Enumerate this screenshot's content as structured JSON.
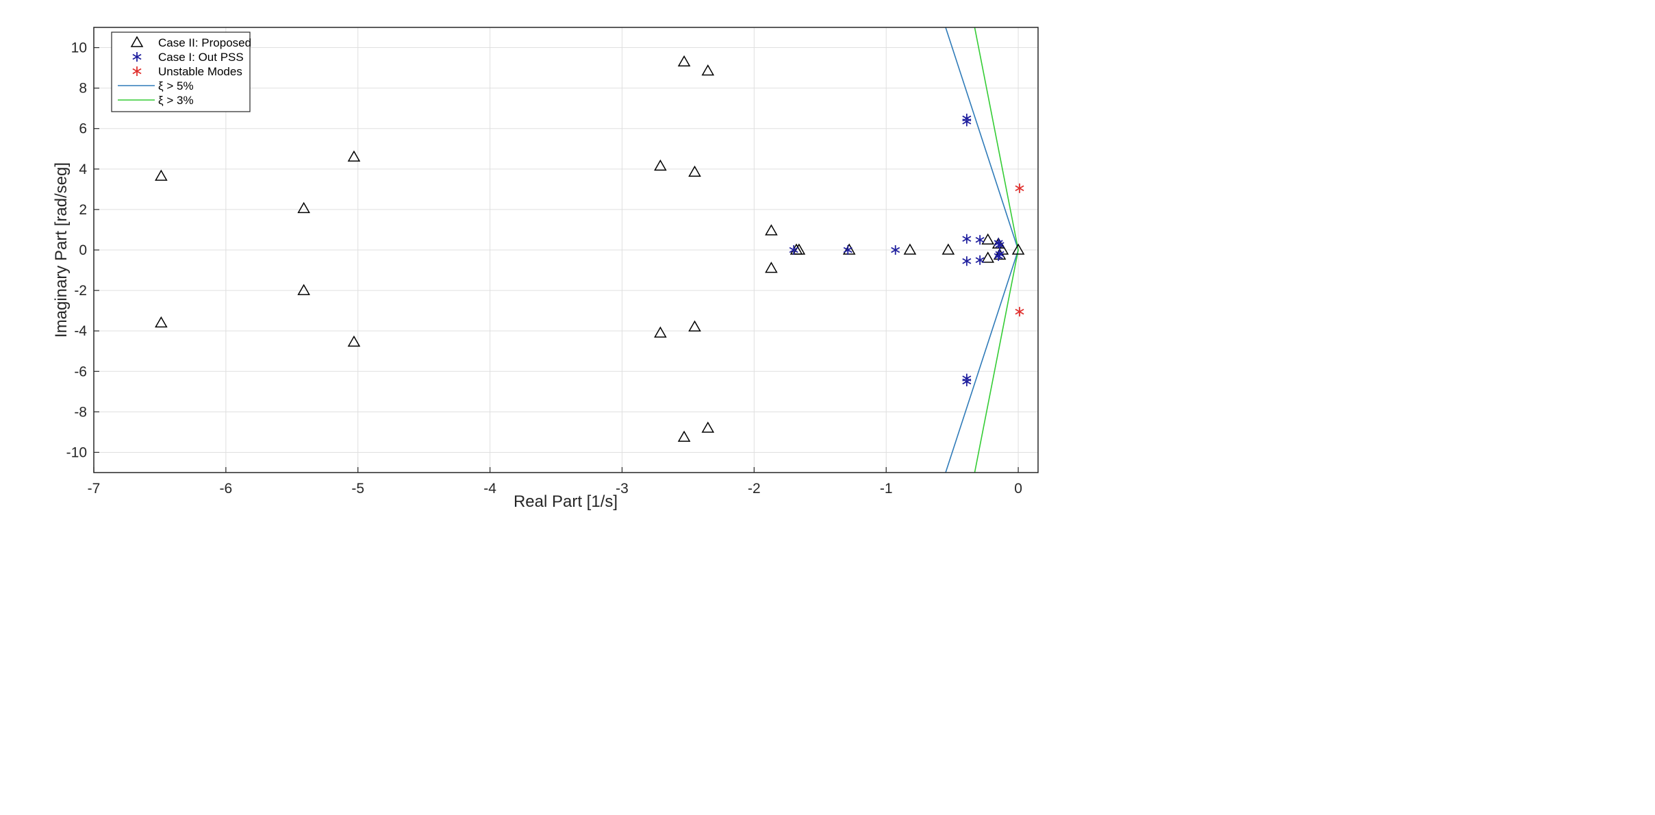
{
  "chart_data": {
    "type": "scatter",
    "xlabel": "Real Part [1/s]",
    "ylabel": "Imaginary Part [rad/seg]",
    "xlim": [
      -7,
      0.15
    ],
    "ylim": [
      -11,
      11
    ],
    "xticks": [
      -7,
      -6,
      -5,
      -4,
      -3,
      -2,
      -1,
      0
    ],
    "yticks": [
      -10,
      -8,
      -6,
      -4,
      -2,
      0,
      2,
      4,
      6,
      8,
      10
    ],
    "grid": true,
    "legend_position": "top-left",
    "series": [
      {
        "name": "Case II: Proposed",
        "marker": "triangle",
        "color": "#000000",
        "points": [
          [
            -6.49,
            3.65
          ],
          [
            -6.49,
            -3.6
          ],
          [
            -5.41,
            2.05
          ],
          [
            -5.41,
            -2.0
          ],
          [
            -5.03,
            4.6
          ],
          [
            -5.03,
            -4.55
          ],
          [
            -2.71,
            4.15
          ],
          [
            -2.71,
            -4.1
          ],
          [
            -2.53,
            9.3
          ],
          [
            -2.53,
            -9.25
          ],
          [
            -2.45,
            3.85
          ],
          [
            -2.45,
            -3.8
          ],
          [
            -2.35,
            8.85
          ],
          [
            -2.35,
            -8.8
          ],
          [
            -1.87,
            0.95
          ],
          [
            -1.87,
            -0.9
          ],
          [
            -1.68,
            0.0
          ],
          [
            -1.66,
            0.0
          ],
          [
            -1.28,
            0.0
          ],
          [
            -0.82,
            0.0
          ],
          [
            -0.53,
            0.0
          ],
          [
            -0.23,
            0.5
          ],
          [
            -0.23,
            -0.4
          ],
          [
            -0.15,
            0.3
          ],
          [
            -0.14,
            -0.25
          ],
          [
            -0.12,
            0.0
          ],
          [
            0.0,
            0.0
          ]
        ]
      },
      {
        "name": "Case I: Out PSS",
        "marker": "asterisk",
        "color": "#1f1f9e",
        "points": [
          [
            -1.7,
            0.0
          ],
          [
            -1.29,
            0.0
          ],
          [
            -0.93,
            0.0
          ],
          [
            -0.39,
            6.5
          ],
          [
            -0.39,
            6.35
          ],
          [
            -0.39,
            -6.35
          ],
          [
            -0.39,
            -6.5
          ],
          [
            -0.39,
            0.55
          ],
          [
            -0.39,
            -0.55
          ],
          [
            -0.29,
            0.5
          ],
          [
            -0.29,
            -0.5
          ],
          [
            -0.15,
            0.35
          ],
          [
            -0.15,
            -0.3
          ],
          [
            -0.14,
            0.25
          ],
          [
            -0.14,
            -0.2
          ]
        ]
      },
      {
        "name": "Unstable Modes",
        "marker": "asterisk",
        "color": "#e0302e",
        "points": [
          [
            0.01,
            3.05
          ],
          [
            0.01,
            -3.05
          ]
        ]
      },
      {
        "name": "ξ > 5%",
        "marker": "line",
        "color": "#2e7ab8",
        "segments": [
          [
            [
              0,
              0
            ],
            [
              -0.55,
              11
            ]
          ],
          [
            [
              0,
              0
            ],
            [
              -0.55,
              -11
            ]
          ]
        ]
      },
      {
        "name": "ξ > 3%",
        "marker": "line",
        "color": "#33cc33",
        "segments": [
          [
            [
              0,
              0
            ],
            [
              -0.33,
              11
            ]
          ],
          [
            [
              0,
              0
            ],
            [
              -0.33,
              -11
            ]
          ]
        ]
      }
    ]
  }
}
